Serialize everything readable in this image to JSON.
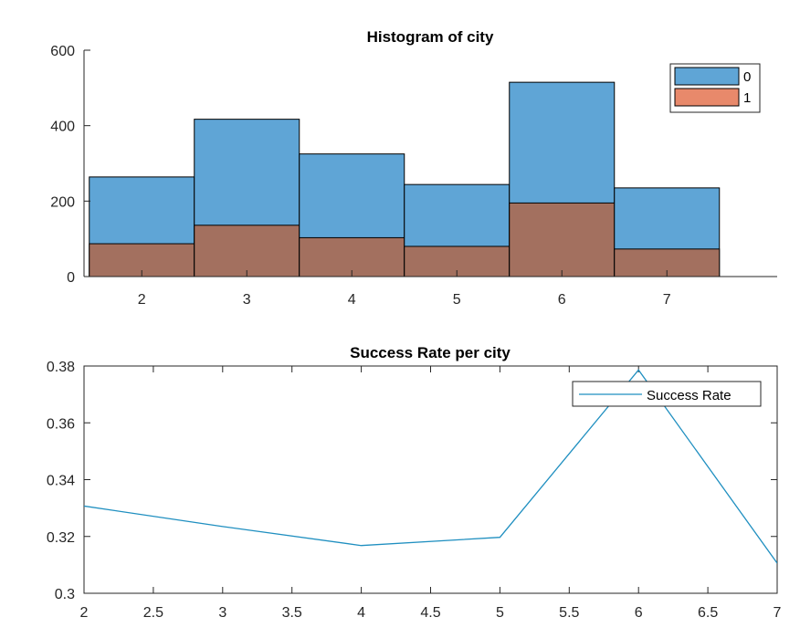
{
  "chart_data": [
    {
      "type": "bar",
      "title": "Histogram of city",
      "xlabel": "",
      "ylabel": "",
      "categories": [
        "2",
        "3",
        "4",
        "5",
        "6",
        "7"
      ],
      "xlim": [
        1.45,
        8.05
      ],
      "ylim": [
        0,
        600
      ],
      "yticks": [
        0,
        200,
        400,
        600
      ],
      "grid": false,
      "overlay": true,
      "legend": {
        "position": "top-right"
      },
      "series": [
        {
          "name": "0",
          "color": "#5fa5d6",
          "values": [
            264,
            417,
            325,
            244,
            515,
            235
          ]
        },
        {
          "name": "1",
          "color": "#e8896b",
          "values": [
            87,
            136,
            103,
            80,
            195,
            73
          ]
        }
      ],
      "overlap_color": "#a3705f"
    },
    {
      "type": "line",
      "title": "Success Rate per city",
      "xlabel": "",
      "ylabel": "",
      "xlim": [
        2,
        7
      ],
      "ylim": [
        0.3,
        0.38
      ],
      "xticks": [
        "2",
        "2.5",
        "3",
        "3.5",
        "4",
        "4.5",
        "5",
        "5.5",
        "6",
        "6.5",
        "7"
      ],
      "yticks": [
        "0.3",
        "0.32",
        "0.34",
        "0.36",
        "0.38"
      ],
      "grid": false,
      "legend": {
        "position": "top-right"
      },
      "series": [
        {
          "name": "Success Rate",
          "color": "#1f8fc0",
          "x": [
            2,
            3,
            4,
            5,
            6,
            7
          ],
          "y": [
            0.3307,
            0.3235,
            0.3168,
            0.3197,
            0.3786,
            0.3106
          ]
        }
      ]
    }
  ]
}
